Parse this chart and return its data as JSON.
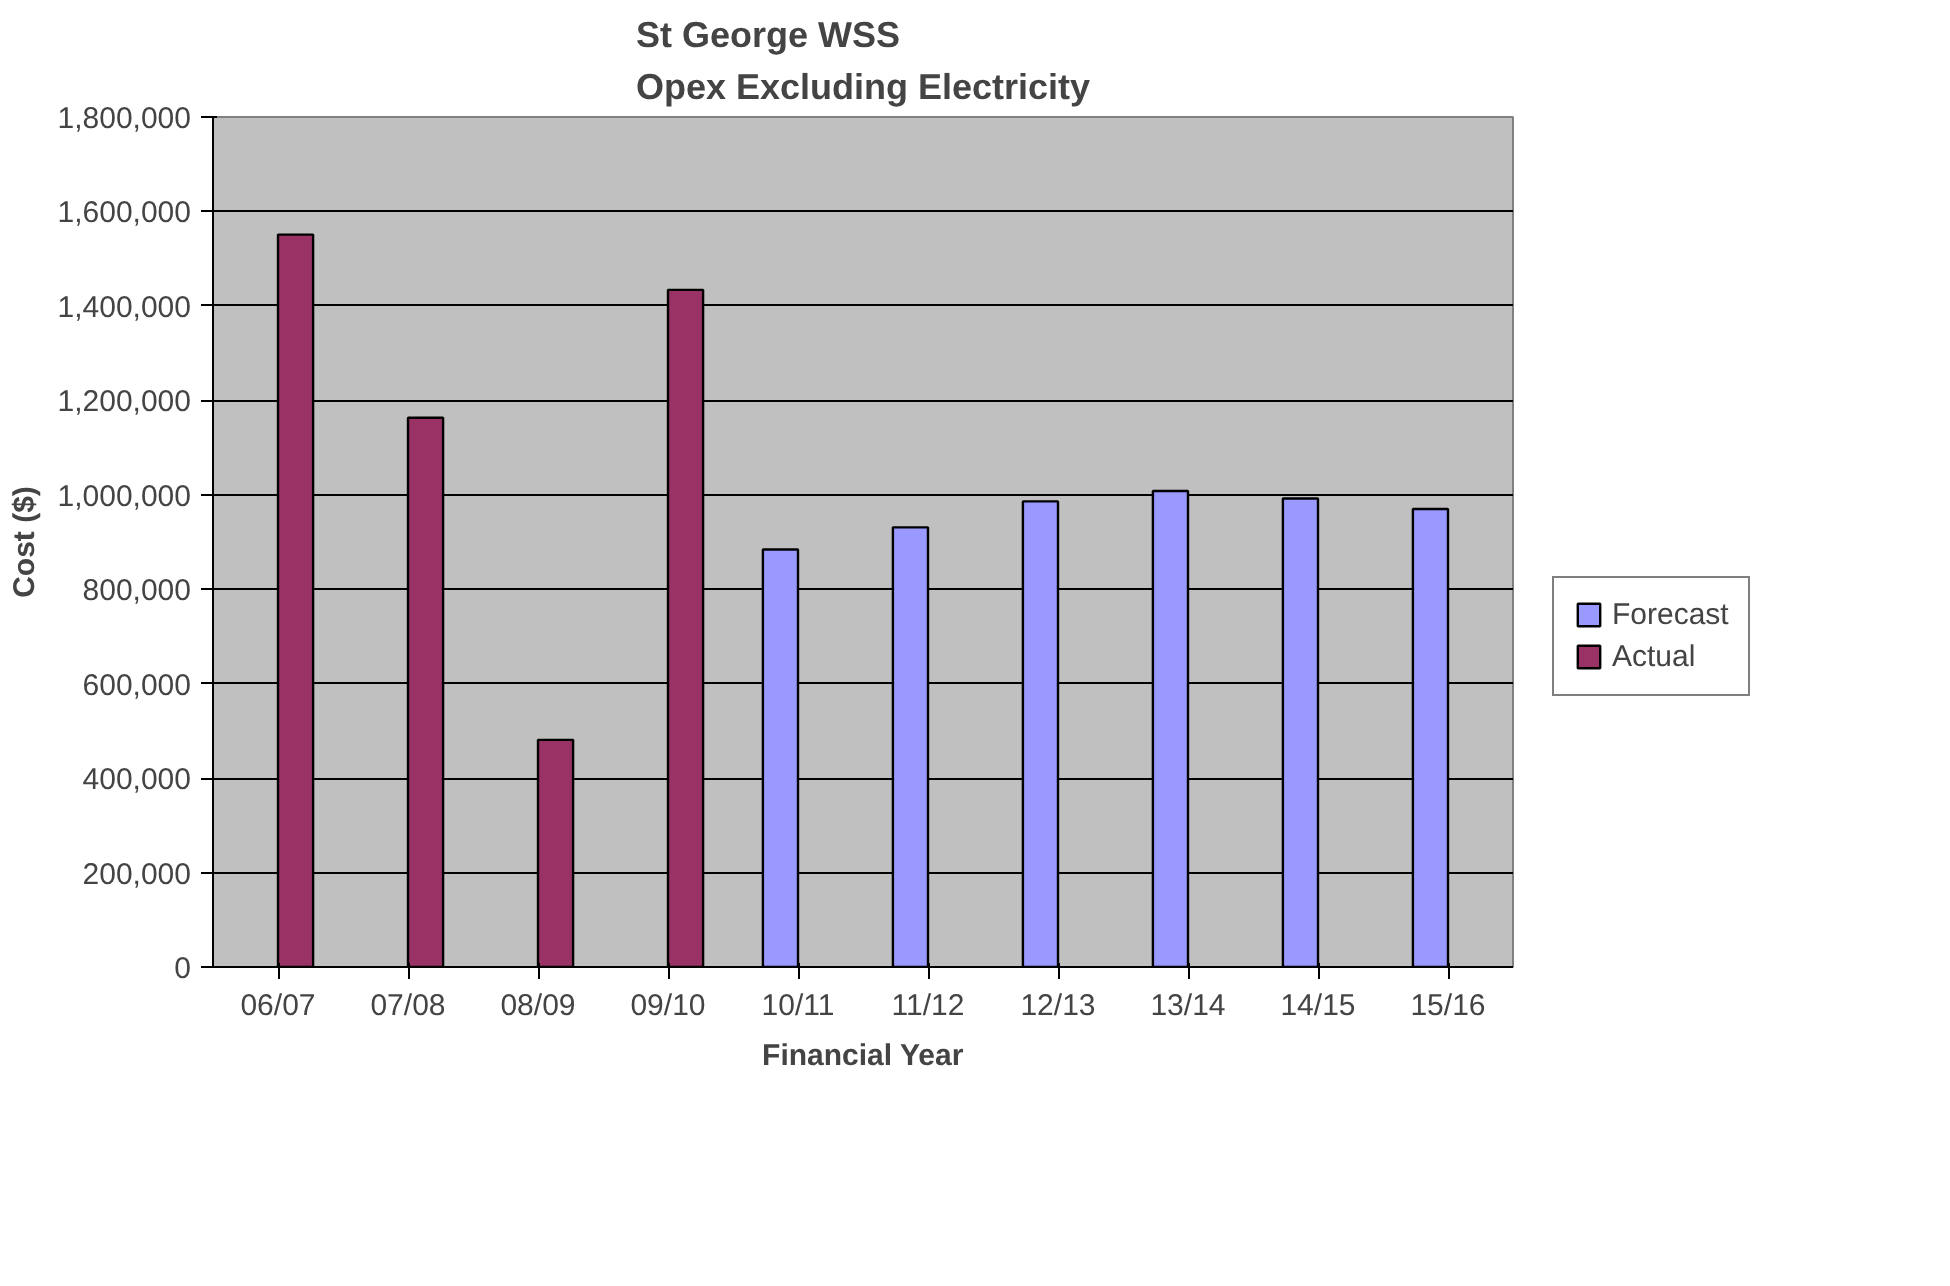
{
  "chart_data": {
    "type": "bar",
    "title": "St George WSS\nOpex Excluding Electricity",
    "xlabel": "Financial Year",
    "ylabel": "Cost ($)",
    "categories": [
      "06/07",
      "07/08",
      "08/09",
      "09/10",
      "10/11",
      "11/12",
      "12/13",
      "13/14",
      "14/15",
      "15/16"
    ],
    "series": [
      {
        "name": "Forecast",
        "color": "#9999ff",
        "values": [
          null,
          null,
          null,
          null,
          884000,
          931000,
          986000,
          1008000,
          992000,
          970000
        ]
      },
      {
        "name": "Actual",
        "color": "#993366",
        "values": [
          1551000,
          1163000,
          481000,
          1434000,
          null,
          null,
          null,
          null,
          null,
          null
        ]
      }
    ],
    "ylim": [
      0,
      1800000
    ],
    "yticks": [
      {
        "value": 0,
        "label": "0"
      },
      {
        "value": 200000,
        "label": "200,000"
      },
      {
        "value": 400000,
        "label": "400,000"
      },
      {
        "value": 600000,
        "label": "600,000"
      },
      {
        "value": 800000,
        "label": "800,000"
      },
      {
        "value": 1000000,
        "label": "1,000,000"
      },
      {
        "value": 1200000,
        "label": "1,200,000"
      },
      {
        "value": 1400000,
        "label": "1,400,000"
      },
      {
        "value": 1600000,
        "label": "1,600,000"
      },
      {
        "value": 1800000,
        "label": "1,800,000"
      }
    ],
    "grid": "y",
    "legend": "right"
  }
}
